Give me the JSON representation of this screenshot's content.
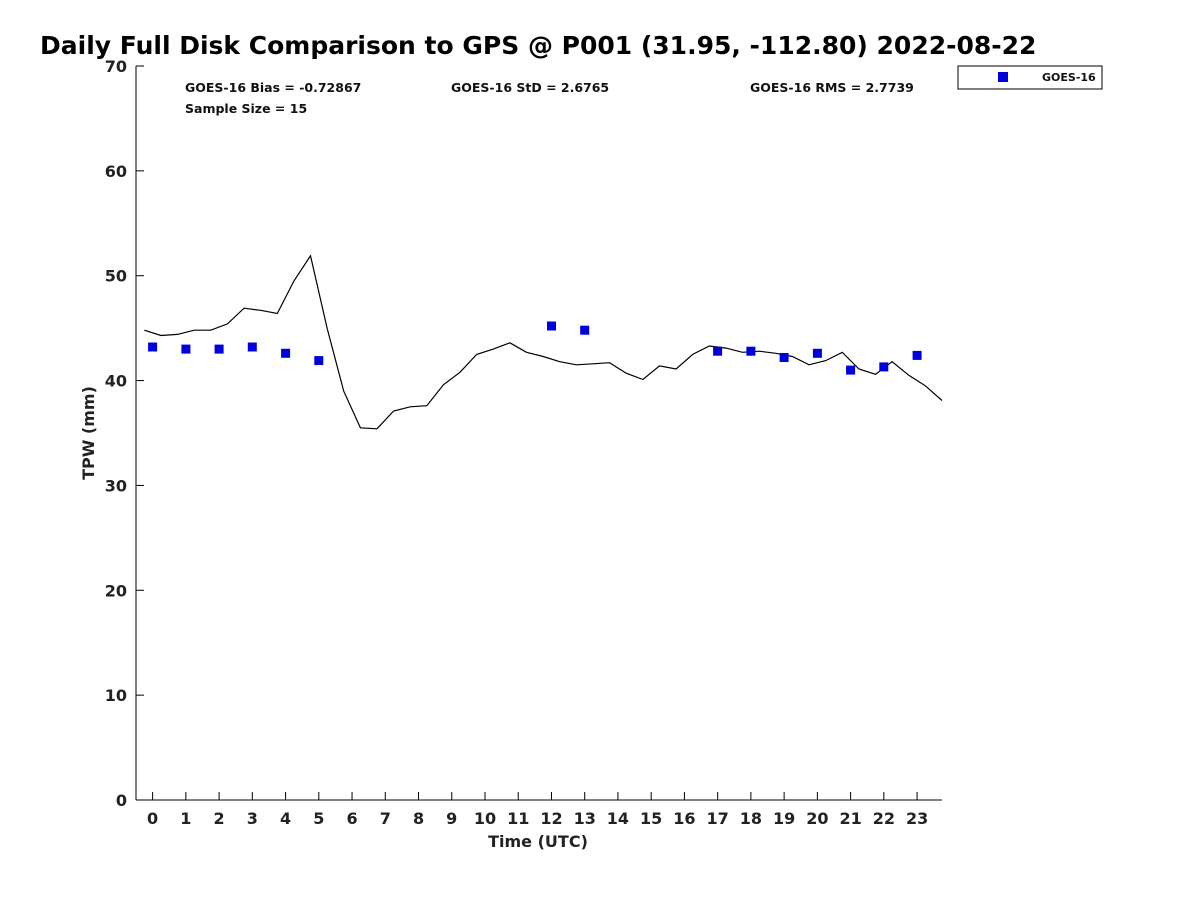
{
  "chart_data": {
    "type": "scatter",
    "title": "Daily Full Disk Comparison to GPS @ P001 (31.95, -112.80) 2022-08-22",
    "xlabel": "Time (UTC)",
    "ylabel": "TPW (mm)",
    "xlim": [
      -0.5,
      23.75
    ],
    "ylim": [
      0,
      70
    ],
    "x_ticks": [
      0,
      1,
      2,
      3,
      4,
      5,
      6,
      7,
      8,
      9,
      10,
      11,
      12,
      13,
      14,
      15,
      16,
      17,
      18,
      19,
      20,
      21,
      22,
      23
    ],
    "x_tick_labels": [
      "0",
      "1",
      "2",
      "3",
      "4",
      "5",
      "6",
      "7",
      "8",
      "9",
      "10",
      "11",
      "12",
      "13",
      "14",
      "15",
      "16",
      "17",
      "18",
      "19",
      "20",
      "21",
      "22",
      "23"
    ],
    "y_ticks": [
      0,
      10,
      20,
      30,
      40,
      50,
      60,
      70
    ],
    "y_tick_labels": [
      "0",
      "10",
      "20",
      "30",
      "40",
      "50",
      "60",
      "70"
    ],
    "grid": false,
    "legend_position": "top-right, outside plot",
    "stats": {
      "bias": "GOES-16 Bias = -0.72867",
      "std": "GOES-16 StD = 2.6765",
      "rms": "GOES-16 RMS = 2.7739",
      "sample": "Sample Size = 15"
    },
    "series": [
      {
        "name": "GOES-16",
        "type": "scatter",
        "marker": "square",
        "color": "#0000dd",
        "x": [
          0,
          1,
          2,
          3,
          4,
          5,
          12,
          13,
          17,
          18,
          19,
          20,
          21,
          22,
          23
        ],
        "y": [
          43.2,
          43.0,
          43.0,
          43.2,
          42.6,
          41.9,
          45.2,
          44.8,
          42.8,
          42.8,
          42.2,
          42.6,
          41.0,
          41.3,
          42.4
        ]
      },
      {
        "type": "line",
        "color": "#000000",
        "x": [
          -0.25,
          0.25,
          0.75,
          1.25,
          1.75,
          2.25,
          2.75,
          3.25,
          3.75,
          4.25,
          4.75,
          5.25,
          5.75,
          6.25,
          6.75,
          7.25,
          7.75,
          8.25,
          8.75,
          9.25,
          9.75,
          10.25,
          10.75,
          11.25,
          11.75,
          12.25,
          12.75,
          13.25,
          13.75,
          14.25,
          14.75,
          15.25,
          15.75,
          16.25,
          16.75,
          17.25,
          17.75,
          18.25,
          18.75,
          19.25,
          19.75,
          20.25,
          20.75,
          21.25,
          21.75,
          22.25,
          22.75,
          23.25,
          23.75
        ],
        "y": [
          44.8,
          44.3,
          44.4,
          44.8,
          44.8,
          45.4,
          46.9,
          46.7,
          46.4,
          49.5,
          51.9,
          45.0,
          39.0,
          35.5,
          35.4,
          37.1,
          37.5,
          37.6,
          39.6,
          40.8,
          42.5,
          43.0,
          43.6,
          42.7,
          42.3,
          41.8,
          41.5,
          41.6,
          41.7,
          40.7,
          40.1,
          41.4,
          41.1,
          42.5,
          43.3,
          43.1,
          42.7,
          42.8,
          42.6,
          42.3,
          41.5,
          41.9,
          42.7,
          41.1,
          40.6,
          41.8,
          40.5,
          39.5,
          38.1
        ]
      }
    ]
  }
}
